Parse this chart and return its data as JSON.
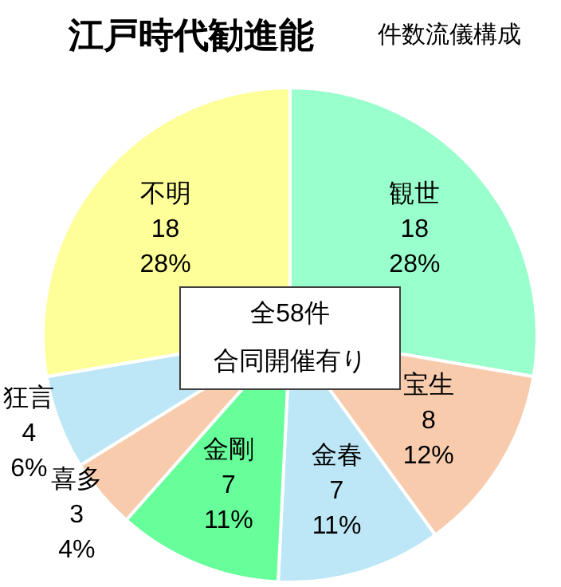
{
  "chart_data": {
    "type": "pie",
    "title": "江戸時代勧進能",
    "subtitle": "件数流儀構成",
    "categories": [
      "観世",
      "宝生",
      "金春",
      "金剛",
      "喜多",
      "狂言",
      "不明"
    ],
    "values": [
      18,
      8,
      7,
      7,
      3,
      4,
      18
    ],
    "value_labels": [
      "18 28%",
      "8 12%",
      "7 11%",
      "7 11%",
      "3 4%",
      "4 6%",
      "18 28%"
    ],
    "colors": [
      "#99ffcc",
      "#f8cbad",
      "#bde7f7",
      "#66ff99",
      "#f8cbad",
      "#bde7f7",
      "#ffff99"
    ],
    "annotations": [
      "全58件",
      "合同開催有り"
    ]
  }
}
